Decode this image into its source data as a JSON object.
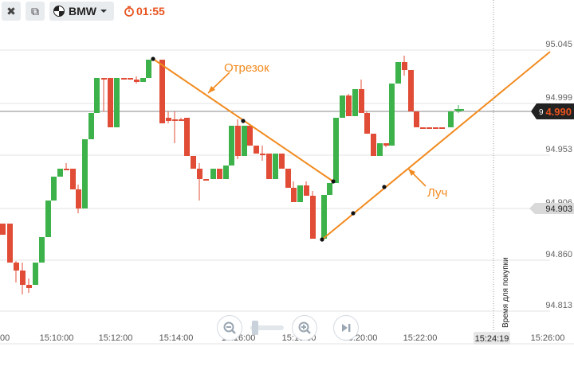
{
  "toolbar": {
    "close_glyph": "✖",
    "window_glyph": "⧉",
    "asset": "BMW",
    "timer": "01:55"
  },
  "chart_data": {
    "type": "candlestick",
    "y_ticks": [
      "95.045",
      "94.999",
      "94.953",
      "94.906",
      "94.860",
      "94.813"
    ],
    "x_ticks": [
      "15:10:00",
      "15:12:00",
      "15:14:00",
      "15:16:00",
      "15:18:00",
      "15:20:00",
      "15:22:00",
      "15:26:00"
    ],
    "x_ticks_partial_left": "00",
    "current_price": "4.990",
    "current_price_prefix": "9",
    "ref_price": "94.903",
    "purchase_time": "15:24:19",
    "purchase_label": "Время для покупки",
    "annotations": [
      {
        "text": "Отрезок"
      },
      {
        "text": "Луч"
      }
    ],
    "colors": {
      "up": "#3db24a",
      "down": "#e04c35",
      "line": "#f28a1e",
      "price_tag": "#e8531f"
    }
  }
}
